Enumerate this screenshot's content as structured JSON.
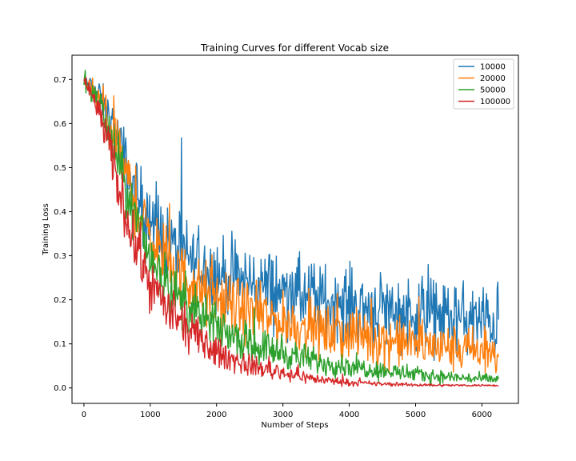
{
  "chart_data": {
    "type": "line",
    "title": "Training Curves for different Vocab size",
    "xlabel": "Number of Steps",
    "ylabel": "Training Loss",
    "xlim": [
      -180,
      6550
    ],
    "ylim": [
      -0.035,
      0.755
    ],
    "xticks": [
      0,
      1000,
      2000,
      3000,
      4000,
      5000,
      6000
    ],
    "yticks": [
      0.0,
      0.1,
      0.2,
      0.3,
      0.4,
      0.5,
      0.6,
      0.7
    ],
    "ytick_labels": [
      "0.0",
      "0.1",
      "0.2",
      "0.3",
      "0.4",
      "0.5",
      "0.6",
      "0.7"
    ],
    "xtick_labels": [
      "0",
      "1000",
      "2000",
      "3000",
      "4000",
      "5000",
      "6000"
    ],
    "grid": false,
    "legend_position": "top-right",
    "series": [
      {
        "name": "10000",
        "color": "#1f77b4",
        "x": [
          0,
          250,
          500,
          750,
          1000,
          1250,
          1500,
          1750,
          2000,
          2500,
          3000,
          3500,
          4000,
          4500,
          5000,
          5500,
          6000,
          6250
        ],
        "mean": [
          0.7,
          0.66,
          0.57,
          0.45,
          0.37,
          0.33,
          0.3,
          0.28,
          0.26,
          0.24,
          0.22,
          0.2,
          0.19,
          0.18,
          0.17,
          0.16,
          0.15,
          0.15
        ],
        "noise": [
          0.015,
          0.03,
          0.05,
          0.07,
          0.07,
          0.07,
          0.07,
          0.07,
          0.07,
          0.07,
          0.07,
          0.07,
          0.07,
          0.07,
          0.07,
          0.07,
          0.07,
          0.07
        ]
      },
      {
        "name": "20000",
        "color": "#ff7f0e",
        "x": [
          0,
          250,
          500,
          750,
          1000,
          1250,
          1500,
          1750,
          2000,
          2500,
          3000,
          3500,
          4000,
          4500,
          5000,
          5500,
          6000,
          6250
        ],
        "mean": [
          0.7,
          0.65,
          0.55,
          0.43,
          0.34,
          0.29,
          0.25,
          0.22,
          0.2,
          0.17,
          0.15,
          0.13,
          0.12,
          0.11,
          0.1,
          0.09,
          0.08,
          0.07
        ],
        "noise": [
          0.015,
          0.03,
          0.05,
          0.06,
          0.06,
          0.06,
          0.06,
          0.06,
          0.06,
          0.055,
          0.05,
          0.05,
          0.05,
          0.05,
          0.045,
          0.045,
          0.045,
          0.04
        ]
      },
      {
        "name": "50000",
        "color": "#2ca02c",
        "x": [
          0,
          250,
          500,
          750,
          1000,
          1250,
          1500,
          1750,
          2000,
          2500,
          3000,
          3500,
          4000,
          4500,
          5000,
          5500,
          6000,
          6250
        ],
        "mean": [
          0.7,
          0.64,
          0.52,
          0.39,
          0.3,
          0.24,
          0.19,
          0.16,
          0.14,
          0.1,
          0.08,
          0.06,
          0.05,
          0.04,
          0.03,
          0.025,
          0.02,
          0.02
        ],
        "noise": [
          0.015,
          0.03,
          0.05,
          0.055,
          0.055,
          0.05,
          0.05,
          0.045,
          0.04,
          0.035,
          0.03,
          0.025,
          0.02,
          0.018,
          0.015,
          0.012,
          0.01,
          0.01
        ]
      },
      {
        "name": "100000",
        "color": "#d62728",
        "x": [
          0,
          250,
          500,
          750,
          1000,
          1250,
          1500,
          1750,
          2000,
          2500,
          3000,
          3500,
          4000,
          4500,
          5000,
          5500,
          6000,
          6250
        ],
        "mean": [
          0.7,
          0.62,
          0.47,
          0.33,
          0.24,
          0.18,
          0.14,
          0.11,
          0.08,
          0.05,
          0.035,
          0.02,
          0.012,
          0.009,
          0.007,
          0.006,
          0.006,
          0.006
        ],
        "noise": [
          0.015,
          0.03,
          0.05,
          0.05,
          0.05,
          0.045,
          0.04,
          0.035,
          0.03,
          0.02,
          0.015,
          0.01,
          0.006,
          0.004,
          0.003,
          0.002,
          0.002,
          0.002
        ]
      }
    ]
  }
}
